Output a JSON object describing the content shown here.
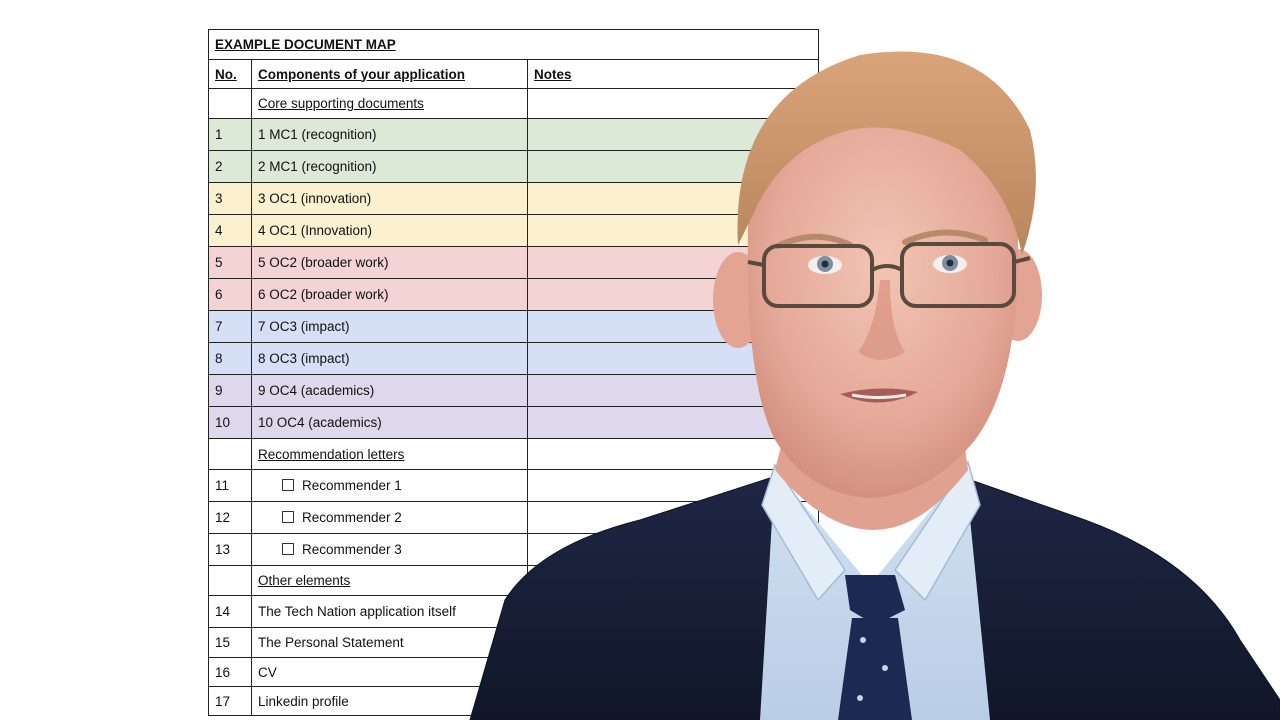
{
  "document_map": {
    "title": "EXAMPLE DOCUMENT MAP",
    "headers": {
      "no": "No.",
      "component": "Components of your application",
      "notes": "Notes"
    },
    "sections": [
      {
        "heading": "Core supporting documents",
        "rows": [
          {
            "no": "1",
            "label": "1 MC1 (recognition)",
            "color": "#dce9d6"
          },
          {
            "no": "2",
            "label": "2 MC1 (recognition)",
            "color": "#dce9d6"
          },
          {
            "no": "3",
            "label": "3 OC1 (innovation)",
            "color": "#fcf1cf"
          },
          {
            "no": "4",
            "label": "4 OC1 (Innovation)",
            "color": "#fcf1cf"
          },
          {
            "no": "5",
            "label": "5 OC2 (broader work)",
            "color": "#f3d3d3"
          },
          {
            "no": "6",
            "label": "6 OC2 (broader work)",
            "color": "#f3d3d3"
          },
          {
            "no": "7",
            "label": "7 OC3 (impact)",
            "color": "#d5e0f6"
          },
          {
            "no": "8",
            "label": "8 OC3 (impact)",
            "color": "#d5e0f6"
          },
          {
            "no": "9",
            "label": "9 OC4 (academics)",
            "color": "#ddd8ec"
          },
          {
            "no": "10",
            "label": "10 OC4 (academics)",
            "color": "#ddd8ec"
          }
        ]
      },
      {
        "heading": "Recommendation letters",
        "rows": [
          {
            "no": "11",
            "label": "Recommender 1"
          },
          {
            "no": "12",
            "label": "Recommender 2"
          },
          {
            "no": "13",
            "label": "Recommender 3"
          }
        ]
      },
      {
        "heading": "Other elements",
        "rows": [
          {
            "no": "14",
            "label": "The Tech Nation application itself"
          },
          {
            "no": "15",
            "label": "The Personal Statement"
          },
          {
            "no": "16",
            "label": "CV"
          },
          {
            "no": "17",
            "label": "Linkedin profile"
          }
        ]
      }
    ]
  }
}
